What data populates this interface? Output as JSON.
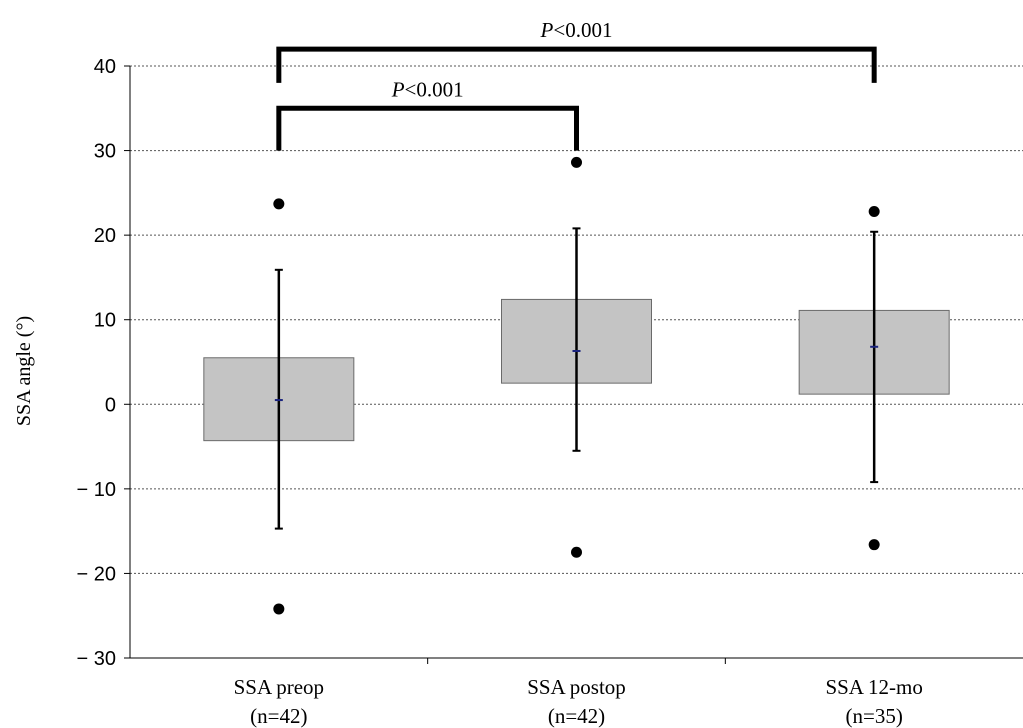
{
  "chart_data": {
    "type": "box",
    "ylabel": "SSA angle (°)",
    "ylim": [
      -30,
      40
    ],
    "yticks": [
      -30,
      -20,
      -10,
      0,
      10,
      20,
      30,
      40
    ],
    "ytick_labels": [
      "− 30",
      "− 20",
      "− 10",
      "0",
      "10",
      "20",
      "30",
      "40"
    ],
    "grid": true,
    "colors": {
      "box": "#c4c4c4",
      "median": "#1a237e",
      "ink": "#000000"
    },
    "categories": [
      {
        "name": "SSA preop",
        "n_label": "(n=42)"
      },
      {
        "name": "SSA postop",
        "n_label": "(n=42)"
      },
      {
        "name": "SSA 12-mo",
        "n_label": "(n=35)"
      }
    ],
    "boxes": [
      {
        "q1": -4.3,
        "median": 0.5,
        "q3": 5.5,
        "whisker_low": -14.7,
        "whisker_high": 15.9,
        "outliers": [
          23.7,
          -24.2
        ]
      },
      {
        "q1": 2.5,
        "median": 6.3,
        "q3": 12.4,
        "whisker_low": -5.5,
        "whisker_high": 20.8,
        "outliers": [
          28.6,
          -17.5
        ]
      },
      {
        "q1": 1.2,
        "median": 6.8,
        "q3": 11.1,
        "whisker_low": -9.2,
        "whisker_high": 20.4,
        "outliers": [
          22.8,
          -16.6
        ]
      }
    ],
    "comparisons": [
      {
        "from": 0,
        "to": 1,
        "y": 35,
        "drop_to": 30,
        "label_italic": "P",
        "label_rest": "<0.001"
      },
      {
        "from": 0,
        "to": 2,
        "y": 42,
        "drop_to": 38,
        "label_italic": "P",
        "label_rest": "<0.001"
      }
    ]
  }
}
